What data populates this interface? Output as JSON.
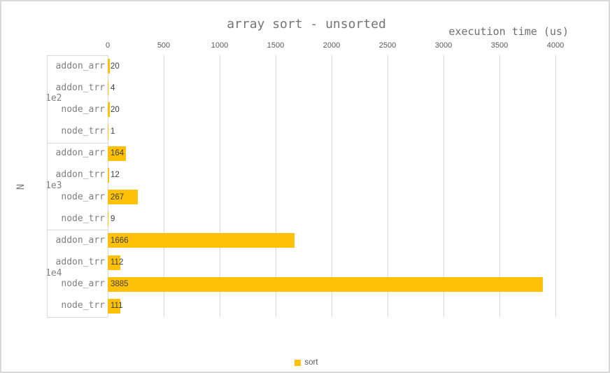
{
  "window": {
    "background": "#ffffff",
    "border_color": "#d9d9d9"
  },
  "chart_data": {
    "type": "bar",
    "orientation": "horizontal",
    "title": "array sort - unsorted",
    "xlabel": "execution time (us)",
    "ylabel": "N",
    "xlim": [
      0,
      4000
    ],
    "x_ticks": [
      0,
      500,
      1000,
      1500,
      2000,
      2500,
      3000,
      3500,
      4000
    ],
    "grid": true,
    "data_labels": true,
    "legend_position": "bottom-center",
    "legend": [
      {
        "name": "sort",
        "color": "#FFC107"
      }
    ],
    "groups": [
      {
        "label": "1e2",
        "categories": [
          "addon_arr",
          "addon_trr",
          "node_arr",
          "node_trr"
        ],
        "values": [
          20,
          4,
          20,
          1
        ]
      },
      {
        "label": "1e3",
        "categories": [
          "addon_arr",
          "addon_trr",
          "node_arr",
          "node_trr"
        ],
        "values": [
          164,
          12,
          267,
          9
        ]
      },
      {
        "label": "1e4",
        "categories": [
          "addon_arr",
          "addon_trr",
          "node_arr",
          "node_trr"
        ],
        "values": [
          1666,
          112,
          3885,
          111
        ]
      }
    ]
  },
  "colors": {
    "bar": "#FFC107",
    "grid": "#d9d9d9",
    "tick_text": "#595959",
    "category_text": "#7f7f7f",
    "title_text": "#757575",
    "data_label_text": "#3f3f3f"
  }
}
